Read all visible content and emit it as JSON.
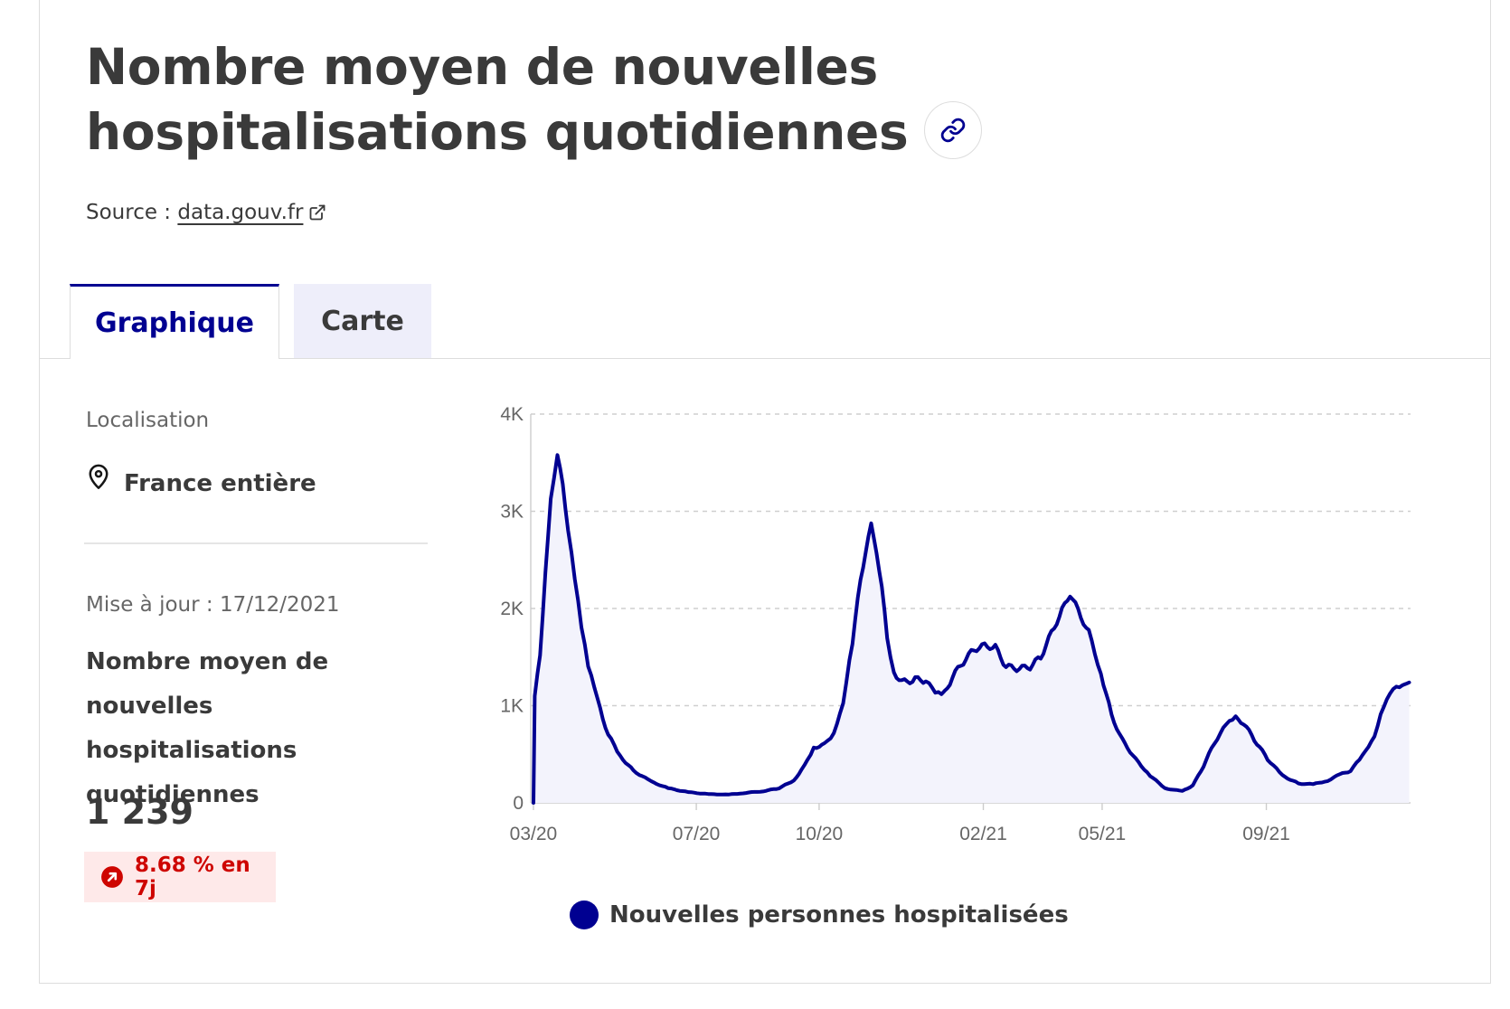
{
  "header": {
    "title": "Nombre moyen de nouvelles hospitalisations quotidiennes",
    "source_prefix": "Source : ",
    "source_link": "data.gouv.fr"
  },
  "tabs": [
    {
      "label": "Graphique",
      "active": true
    },
    {
      "label": "Carte",
      "active": false
    }
  ],
  "sidebar": {
    "location_label": "Localisation",
    "location_value": "France entière",
    "update_text": "Mise à jour : 17/12/2021",
    "indicator_title": "Nombre moyen de nouvelles hospitalisations quotidiennes",
    "indicator_value": "1 239",
    "trend_text": "8.68 % en 7j"
  },
  "colors": {
    "accent": "#000091",
    "trend_up": "#ce0500",
    "trend_bg": "#fee9e9",
    "fill": "#f3f3fc"
  },
  "icons": {
    "link": "link-icon",
    "external": "external-link-icon",
    "pin": "map-pin-icon",
    "trend": "arrow-up-right-circle-icon"
  },
  "chart_data": {
    "type": "area",
    "title": "",
    "xlabel": "",
    "ylabel": "",
    "x_ticks": [
      "03/20",
      "07/20",
      "10/20",
      "02/21",
      "05/21",
      "09/21"
    ],
    "y_ticks": [
      "0",
      "1K",
      "2K",
      "3K",
      "4K"
    ],
    "ylim": [
      0,
      4000
    ],
    "grid": "horizontal dashed",
    "legend": "bottom",
    "series": [
      {
        "name": "Nouvelles personnes hospitalisées",
        "points": [
          [
            "2020-03-01",
            0
          ],
          [
            "2020-03-02",
            1100
          ],
          [
            "2020-03-06",
            1500
          ],
          [
            "2020-03-10",
            2400
          ],
          [
            "2020-03-14",
            3100
          ],
          [
            "2020-03-19",
            3550
          ],
          [
            "2020-03-23",
            3300
          ],
          [
            "2020-03-27",
            2800
          ],
          [
            "2020-04-01",
            2300
          ],
          [
            "2020-04-06",
            1800
          ],
          [
            "2020-04-11",
            1400
          ],
          [
            "2020-04-18",
            1050
          ],
          [
            "2020-04-26",
            700
          ],
          [
            "2020-05-05",
            480
          ],
          [
            "2020-05-15",
            330
          ],
          [
            "2020-05-28",
            220
          ],
          [
            "2020-06-10",
            150
          ],
          [
            "2020-06-25",
            110
          ],
          [
            "2020-07-10",
            90
          ],
          [
            "2020-07-25",
            85
          ],
          [
            "2020-08-05",
            100
          ],
          [
            "2020-08-20",
            120
          ],
          [
            "2020-09-01",
            150
          ],
          [
            "2020-09-12",
            230
          ],
          [
            "2020-09-20",
            380
          ],
          [
            "2020-09-27",
            570
          ],
          [
            "2020-10-05",
            600
          ],
          [
            "2020-10-12",
            720
          ],
          [
            "2020-10-19",
            1050
          ],
          [
            "2020-10-26",
            1650
          ],
          [
            "2020-11-01",
            2300
          ],
          [
            "2020-11-05",
            2600
          ],
          [
            "2020-11-09",
            2850
          ],
          [
            "2020-11-13",
            2600
          ],
          [
            "2020-11-17",
            2200
          ],
          [
            "2020-11-21",
            1700
          ],
          [
            "2020-11-26",
            1350
          ],
          [
            "2020-12-02",
            1240
          ],
          [
            "2020-12-12",
            1270
          ],
          [
            "2020-12-20",
            1260
          ],
          [
            "2020-12-27",
            1110
          ],
          [
            "2021-01-03",
            1130
          ],
          [
            "2021-01-09",
            1300
          ],
          [
            "2021-01-17",
            1450
          ],
          [
            "2021-01-25",
            1580
          ],
          [
            "2021-02-02",
            1620
          ],
          [
            "2021-02-10",
            1600
          ],
          [
            "2021-02-18",
            1400
          ],
          [
            "2021-02-28",
            1380
          ],
          [
            "2021-03-08",
            1400
          ],
          [
            "2021-03-16",
            1500
          ],
          [
            "2021-03-24",
            1750
          ],
          [
            "2021-04-01",
            1980
          ],
          [
            "2021-04-07",
            2150
          ],
          [
            "2021-04-13",
            1980
          ],
          [
            "2021-04-21",
            1750
          ],
          [
            "2021-04-30",
            1350
          ],
          [
            "2021-05-08",
            900
          ],
          [
            "2021-05-16",
            650
          ],
          [
            "2021-05-26",
            450
          ],
          [
            "2021-06-06",
            280
          ],
          [
            "2021-06-17",
            150
          ],
          [
            "2021-06-30",
            120
          ],
          [
            "2021-07-08",
            180
          ],
          [
            "2021-07-16",
            380
          ],
          [
            "2021-07-24",
            620
          ],
          [
            "2021-08-02",
            800
          ],
          [
            "2021-08-09",
            870
          ],
          [
            "2021-08-15",
            820
          ],
          [
            "2021-08-23",
            650
          ],
          [
            "2021-09-02",
            450
          ],
          [
            "2021-09-13",
            280
          ],
          [
            "2021-09-25",
            200
          ],
          [
            "2021-10-06",
            190
          ],
          [
            "2021-10-17",
            230
          ],
          [
            "2021-10-26",
            290
          ],
          [
            "2021-11-03",
            330
          ],
          [
            "2021-11-12",
            480
          ],
          [
            "2021-11-21",
            700
          ],
          [
            "2021-11-28",
            1000
          ],
          [
            "2021-12-05",
            1150
          ],
          [
            "2021-12-12",
            1210
          ],
          [
            "2021-12-17",
            1239
          ]
        ]
      }
    ]
  }
}
